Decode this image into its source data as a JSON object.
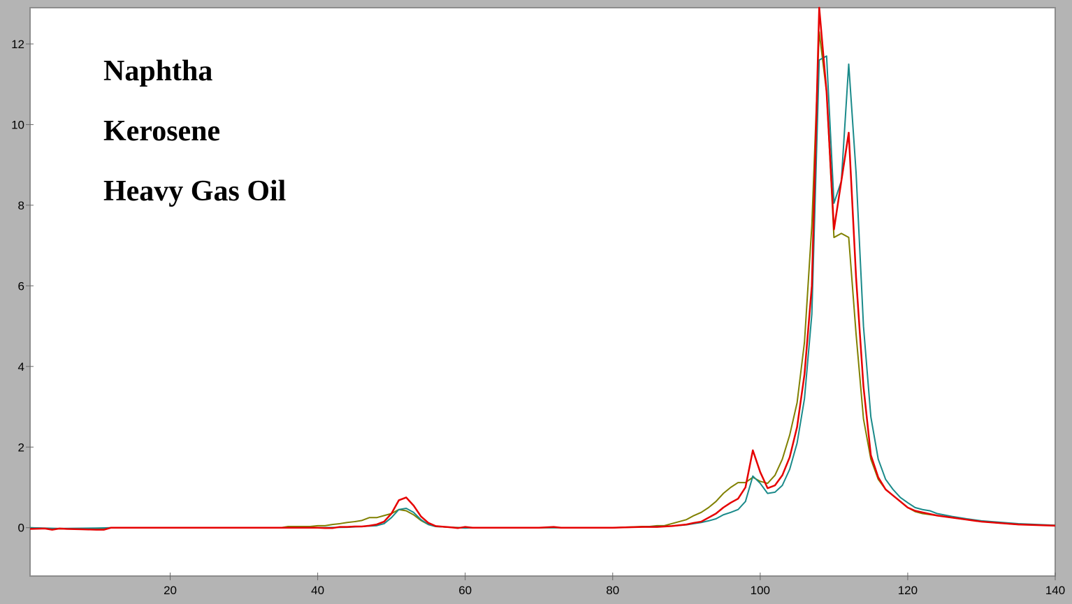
{
  "chart_data": {
    "type": "line",
    "title": "",
    "xlabel": "",
    "ylabel": "",
    "xlim": [
      1,
      140
    ],
    "ylim": [
      -1.2,
      12.9
    ],
    "x_ticks": [
      20,
      40,
      60,
      80,
      100,
      120,
      140
    ],
    "y_ticks": [
      0,
      2,
      4,
      6,
      8,
      10,
      12
    ],
    "grid": false,
    "legend_position": "top-left",
    "legend": [
      "Naphtha",
      "Kerosene",
      "Heavy Gas Oil"
    ],
    "series": [
      {
        "color": "#808000",
        "points": [
          [
            1,
            0
          ],
          [
            5,
            -0.03
          ],
          [
            10,
            -0.03
          ],
          [
            12,
            0
          ],
          [
            20,
            0
          ],
          [
            30,
            0
          ],
          [
            35,
            0
          ],
          [
            36,
            0.03
          ],
          [
            38,
            0.03
          ],
          [
            39,
            0.03
          ],
          [
            40,
            0.05
          ],
          [
            41,
            0.05
          ],
          [
            42,
            0.08
          ],
          [
            43,
            0.1
          ],
          [
            44,
            0.13
          ],
          [
            45,
            0.15
          ],
          [
            46,
            0.18
          ],
          [
            47,
            0.25
          ],
          [
            48,
            0.25
          ],
          [
            49,
            0.3
          ],
          [
            50,
            0.35
          ],
          [
            51,
            0.45
          ],
          [
            52,
            0.42
          ],
          [
            53,
            0.32
          ],
          [
            54,
            0.18
          ],
          [
            55,
            0.08
          ],
          [
            56,
            0.03
          ],
          [
            58,
            0.01
          ],
          [
            60,
            0
          ],
          [
            70,
            0
          ],
          [
            80,
            0
          ],
          [
            84,
            0.03
          ],
          [
            85,
            0.03
          ],
          [
            86,
            0.05
          ],
          [
            87,
            0.05
          ],
          [
            88,
            0.1
          ],
          [
            89,
            0.15
          ],
          [
            90,
            0.2
          ],
          [
            91,
            0.3
          ],
          [
            92,
            0.38
          ],
          [
            93,
            0.5
          ],
          [
            94,
            0.65
          ],
          [
            95,
            0.85
          ],
          [
            96,
            1.0
          ],
          [
            97,
            1.12
          ],
          [
            98,
            1.12
          ],
          [
            99,
            1.25
          ],
          [
            100,
            1.15
          ],
          [
            101,
            1.1
          ],
          [
            102,
            1.3
          ],
          [
            103,
            1.7
          ],
          [
            104,
            2.3
          ],
          [
            105,
            3.1
          ],
          [
            106,
            4.6
          ],
          [
            107,
            7.5
          ],
          [
            108,
            12.3
          ],
          [
            109,
            10.8
          ],
          [
            110,
            7.2
          ],
          [
            111,
            7.3
          ],
          [
            112,
            7.2
          ],
          [
            113,
            4.8
          ],
          [
            114,
            2.7
          ],
          [
            115,
            1.7
          ],
          [
            116,
            1.2
          ],
          [
            117,
            0.95
          ],
          [
            118,
            0.8
          ],
          [
            119,
            0.65
          ],
          [
            120,
            0.5
          ],
          [
            121,
            0.4
          ],
          [
            122,
            0.35
          ],
          [
            124,
            0.3
          ],
          [
            126,
            0.25
          ],
          [
            128,
            0.2
          ],
          [
            130,
            0.15
          ],
          [
            135,
            0.08
          ],
          [
            140,
            0.06
          ]
        ]
      },
      {
        "color": "#1a8a8a",
        "points": [
          [
            1,
            0
          ],
          [
            5,
            -0.02
          ],
          [
            10,
            -0.01
          ],
          [
            12,
            0
          ],
          [
            20,
            0
          ],
          [
            30,
            0
          ],
          [
            40,
            0
          ],
          [
            44,
            0.01
          ],
          [
            46,
            0.03
          ],
          [
            47,
            0.04
          ],
          [
            48,
            0.05
          ],
          [
            49,
            0.1
          ],
          [
            50,
            0.25
          ],
          [
            51,
            0.45
          ],
          [
            52,
            0.48
          ],
          [
            53,
            0.38
          ],
          [
            54,
            0.2
          ],
          [
            55,
            0.08
          ],
          [
            56,
            0.03
          ],
          [
            58,
            0.01
          ],
          [
            60,
            -0.01
          ],
          [
            61,
            0
          ],
          [
            70,
            0
          ],
          [
            80,
            0
          ],
          [
            84,
            0.02
          ],
          [
            86,
            0.03
          ],
          [
            88,
            0.04
          ],
          [
            90,
            0.07
          ],
          [
            91,
            0.1
          ],
          [
            92,
            0.13
          ],
          [
            93,
            0.17
          ],
          [
            94,
            0.22
          ],
          [
            95,
            0.32
          ],
          [
            96,
            0.38
          ],
          [
            97,
            0.45
          ],
          [
            98,
            0.65
          ],
          [
            99,
            1.28
          ],
          [
            100,
            1.1
          ],
          [
            101,
            0.85
          ],
          [
            102,
            0.88
          ],
          [
            103,
            1.05
          ],
          [
            104,
            1.45
          ],
          [
            105,
            2.1
          ],
          [
            106,
            3.2
          ],
          [
            107,
            5.3
          ],
          [
            108,
            11.6
          ],
          [
            109,
            11.7
          ],
          [
            110,
            8.05
          ],
          [
            111,
            8.6
          ],
          [
            112,
            11.5
          ],
          [
            113,
            8.8
          ],
          [
            114,
            5.0
          ],
          [
            115,
            2.75
          ],
          [
            116,
            1.7
          ],
          [
            117,
            1.2
          ],
          [
            118,
            0.95
          ],
          [
            119,
            0.75
          ],
          [
            120,
            0.62
          ],
          [
            121,
            0.5
          ],
          [
            122,
            0.45
          ],
          [
            123,
            0.42
          ],
          [
            124,
            0.35
          ],
          [
            126,
            0.28
          ],
          [
            128,
            0.22
          ],
          [
            130,
            0.17
          ],
          [
            135,
            0.1
          ],
          [
            140,
            0.06
          ]
        ]
      },
      {
        "color": "#e60000",
        "points": [
          [
            1,
            -0.03
          ],
          [
            3,
            -0.02
          ],
          [
            4,
            -0.05
          ],
          [
            5,
            -0.02
          ],
          [
            6,
            -0.03
          ],
          [
            8,
            -0.04
          ],
          [
            10,
            -0.05
          ],
          [
            11,
            -0.05
          ],
          [
            12,
            0
          ],
          [
            20,
            0
          ],
          [
            30,
            0
          ],
          [
            40,
            0
          ],
          [
            41,
            -0.01
          ],
          [
            42,
            -0.01
          ],
          [
            43,
            0.02
          ],
          [
            44,
            0.02
          ],
          [
            45,
            0.03
          ],
          [
            46,
            0.03
          ],
          [
            47,
            0.05
          ],
          [
            48,
            0.08
          ],
          [
            49,
            0.15
          ],
          [
            50,
            0.35
          ],
          [
            51,
            0.68
          ],
          [
            52,
            0.75
          ],
          [
            53,
            0.55
          ],
          [
            54,
            0.28
          ],
          [
            55,
            0.12
          ],
          [
            56,
            0.04
          ],
          [
            58,
            0.01
          ],
          [
            59,
            -0.01
          ],
          [
            60,
            0.02
          ],
          [
            61,
            0
          ],
          [
            70,
            0
          ],
          [
            72,
            0.02
          ],
          [
            73,
            0
          ],
          [
            80,
            0
          ],
          [
            84,
            0.02
          ],
          [
            86,
            0.02
          ],
          [
            88,
            0.04
          ],
          [
            90,
            0.08
          ],
          [
            91,
            0.12
          ],
          [
            92,
            0.15
          ],
          [
            93,
            0.25
          ],
          [
            94,
            0.35
          ],
          [
            95,
            0.5
          ],
          [
            96,
            0.62
          ],
          [
            97,
            0.72
          ],
          [
            98,
            1.0
          ],
          [
            99,
            1.92
          ],
          [
            100,
            1.38
          ],
          [
            101,
            0.98
          ],
          [
            102,
            1.05
          ],
          [
            103,
            1.3
          ],
          [
            104,
            1.75
          ],
          [
            105,
            2.5
          ],
          [
            106,
            3.8
          ],
          [
            107,
            6.0
          ],
          [
            108,
            12.9
          ],
          [
            109,
            10.8
          ],
          [
            110,
            7.4
          ],
          [
            111,
            8.6
          ],
          [
            112,
            9.8
          ],
          [
            113,
            6.2
          ],
          [
            114,
            3.5
          ],
          [
            115,
            1.8
          ],
          [
            116,
            1.25
          ],
          [
            117,
            0.95
          ],
          [
            118,
            0.8
          ],
          [
            119,
            0.65
          ],
          [
            120,
            0.5
          ],
          [
            121,
            0.42
          ],
          [
            122,
            0.38
          ],
          [
            124,
            0.3
          ],
          [
            126,
            0.25
          ],
          [
            128,
            0.2
          ],
          [
            130,
            0.15
          ],
          [
            135,
            0.08
          ],
          [
            140,
            0.05
          ]
        ]
      }
    ]
  }
}
